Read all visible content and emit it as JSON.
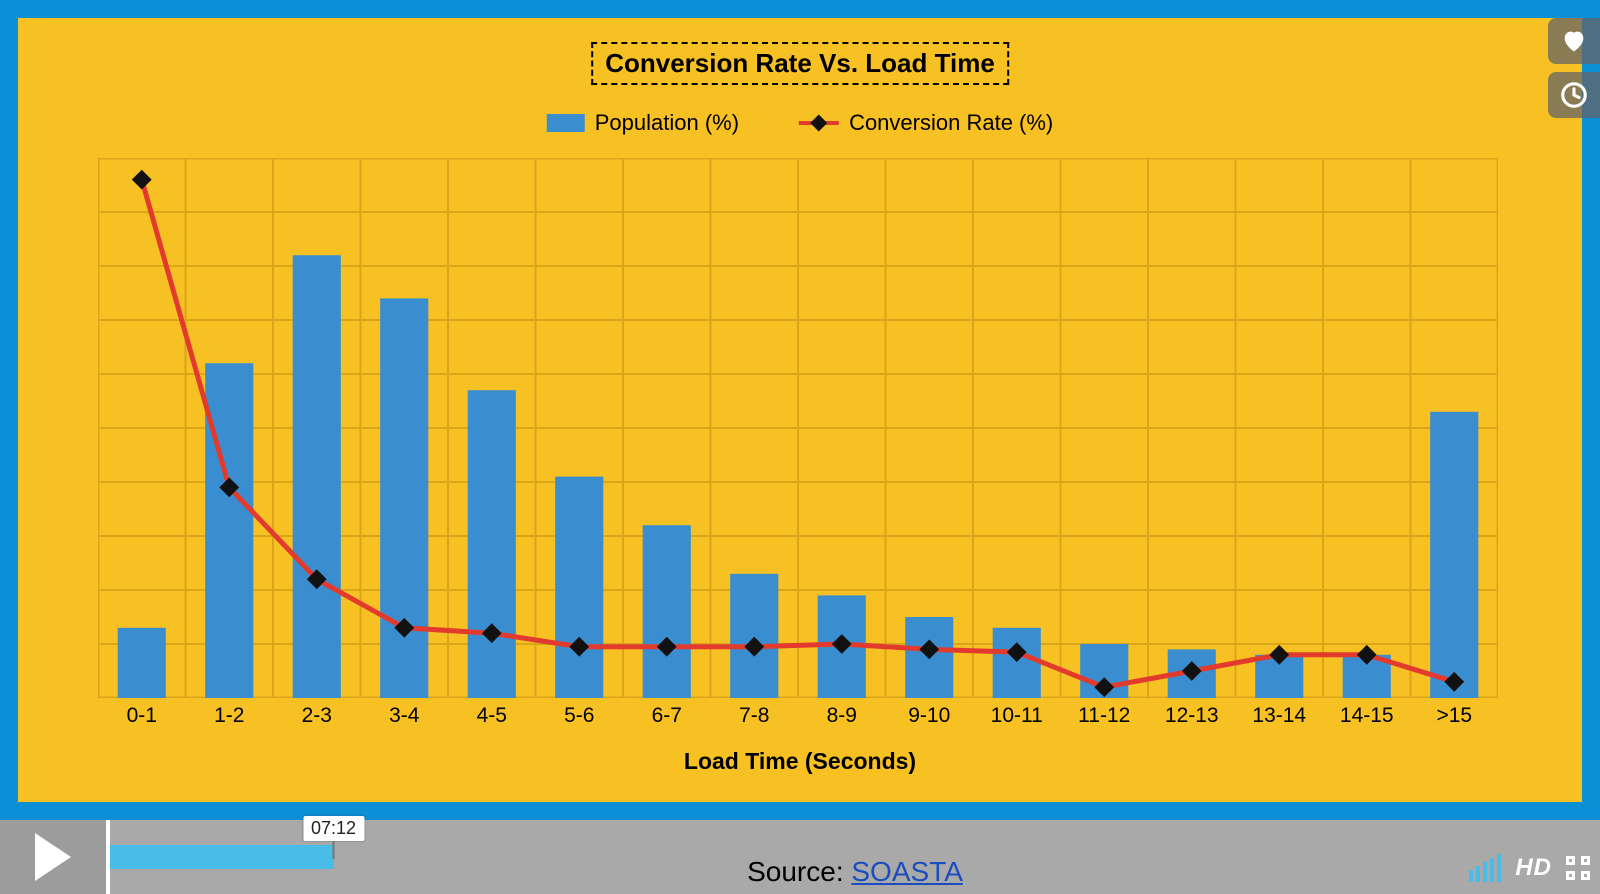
{
  "chart": {
    "type": "bar+line",
    "title": "Conversion Rate Vs. Load Time",
    "title_fontsize": 26,
    "background_color": "#f7c023",
    "frame_border_color": "#0d8fd6",
    "grid_color": "#d9a61a",
    "x_axis_title": "Load Time (Seconds)",
    "x_axis_fontsize": 23,
    "categories": [
      "0-1",
      "1-2",
      "2-3",
      "3-4",
      "4-5",
      "5-6",
      "6-7",
      "7-8",
      "8-9",
      "9-10",
      "10-11",
      "11-12",
      "12-13",
      "13-14",
      "14-15",
      ">15"
    ],
    "population_pct": [
      13,
      62,
      82,
      74,
      57,
      41,
      32,
      23,
      19,
      15,
      13,
      10,
      9,
      8,
      8,
      53
    ],
    "conversion_rate_pct": [
      96,
      39,
      22,
      13,
      12,
      9.5,
      9.5,
      9.5,
      10,
      9,
      8.5,
      2,
      5,
      8,
      8,
      3
    ],
    "ylim": [
      0,
      100
    ],
    "grid_cols": 16,
    "grid_rows": 10,
    "bar_color": "#3a8ed0",
    "bar_width_ratio": 0.55,
    "line_color": "#e23b2e",
    "line_width": 5,
    "marker_shape": "diamond",
    "marker_color": "#111111",
    "marker_size": 14,
    "legend": {
      "series1_label": "Population (%)",
      "series2_label": "Conversion Rate (%)"
    }
  },
  "overlay": {
    "like": {
      "name": "heart-icon"
    },
    "watch_later": {
      "name": "clock-icon"
    }
  },
  "player": {
    "timestamp": "07:12",
    "progress_pct": 15,
    "buffer_pct": 15,
    "track_color": "#a9a9a9",
    "fill_color": "#49bce8",
    "hd_label": "HD",
    "source_prefix": "Source: ",
    "source_link_text": "SOASTA"
  }
}
